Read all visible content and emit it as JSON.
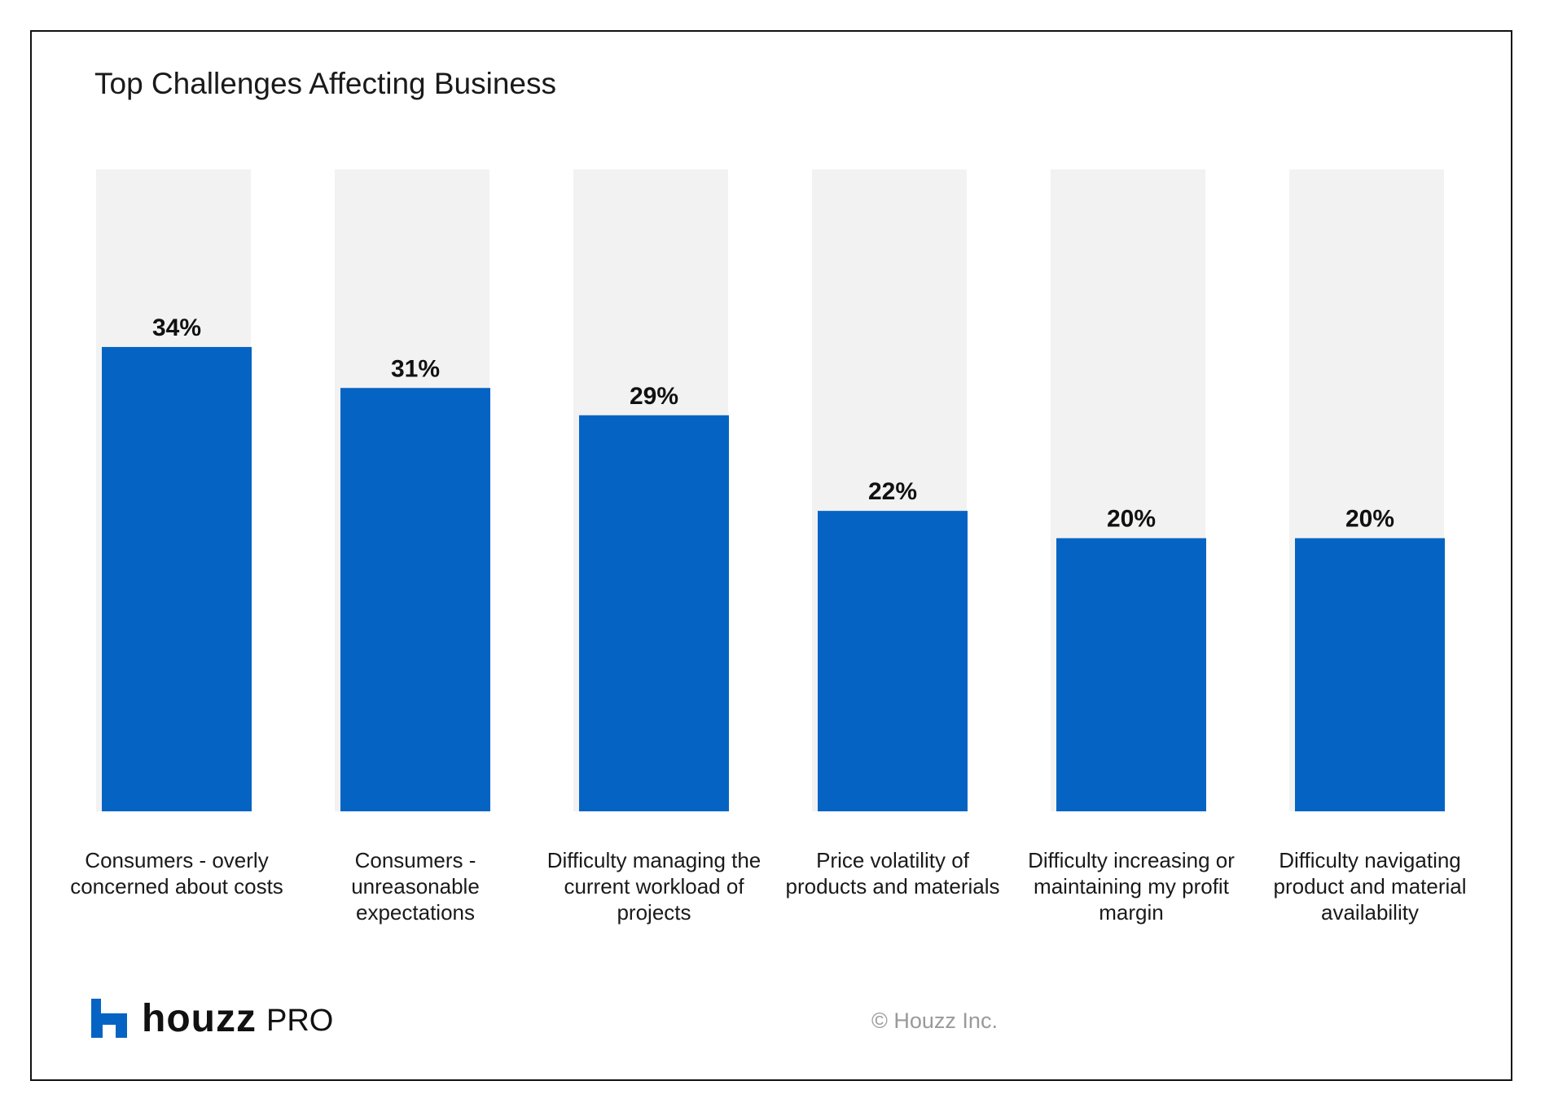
{
  "colors": {
    "bar": "#0564C3",
    "track": "#F2F2F2",
    "text": "#111111",
    "muted": "#9A9A9A",
    "brand": "#0564C3"
  },
  "chart_data": {
    "type": "bar",
    "title": "Top Challenges Affecting Business",
    "categories": [
      "Consumers - overly concerned about costs",
      "Consumers - unreasonable expectations",
      "Difficulty managing the current workload of projects",
      "Price volatility of products and materials",
      "Difficulty increasing or maintaining my profit margin",
      "Difficulty navigating product and material availability"
    ],
    "values": [
      34,
      31,
      29,
      22,
      20,
      20
    ],
    "value_labels": [
      "34%",
      "31%",
      "29%",
      "22%",
      "20%",
      "20%"
    ],
    "ylim": [
      0,
      47
    ],
    "grid": false,
    "legend": "none"
  },
  "footer": {
    "logo_icon": "houzz-h-icon",
    "logo_word": "houzz",
    "logo_sub": "PRO",
    "copyright": "© Houzz Inc."
  }
}
